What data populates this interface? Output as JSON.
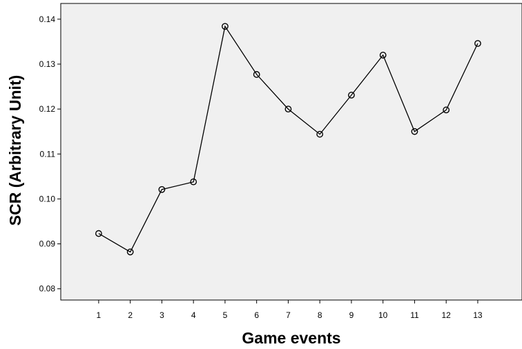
{
  "chart_data": {
    "type": "line",
    "title": "",
    "xlabel": "Game events",
    "ylabel": "SCR (Arbitrary Unit)",
    "x": [
      1,
      2,
      3,
      4,
      5,
      6,
      7,
      8,
      9,
      10,
      11,
      12,
      13
    ],
    "x_tick_labels": [
      "1",
      "2",
      "3",
      "4",
      "5",
      "6",
      "7",
      "8",
      "9",
      "10",
      "11",
      "12",
      "13"
    ],
    "y_ticks": [
      0.08,
      0.09,
      0.1,
      0.11,
      0.12,
      0.13,
      0.14
    ],
    "y_tick_labels": [
      "0.08",
      "0.09",
      "0.10",
      "0.11",
      "0.12",
      "0.13",
      "0.14"
    ],
    "ylim": [
      0.0775,
      0.1435
    ],
    "xlim": [
      -0.2,
      14.4
    ],
    "series": [
      {
        "values": [
          0.0923,
          0.0882,
          0.1021,
          0.1038,
          0.1384,
          0.1277,
          0.12,
          0.1144,
          0.1231,
          0.132,
          0.115,
          0.1198,
          0.1346
        ],
        "marker": "open-circle",
        "color": "#000000"
      }
    ],
    "grid": false,
    "plot_background": "#f0f0f0",
    "legend": "none"
  }
}
